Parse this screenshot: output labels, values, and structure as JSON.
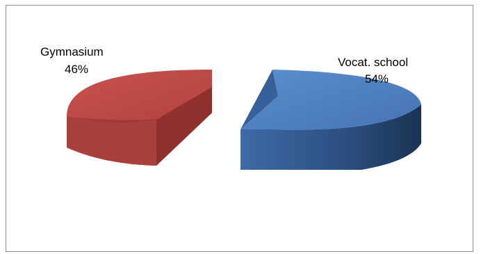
{
  "chart_data": {
    "type": "pie",
    "title": "",
    "categories": [
      "Gymnasium",
      "Vocat. school"
    ],
    "values": [
      46,
      54
    ],
    "value_labels": [
      "46%",
      "54%"
    ],
    "colors": {
      "Gymnasium": "#bf4a47",
      "Vocat. school": "#4a7fc1"
    },
    "exploded": true,
    "style": "3d",
    "legend": "none"
  }
}
